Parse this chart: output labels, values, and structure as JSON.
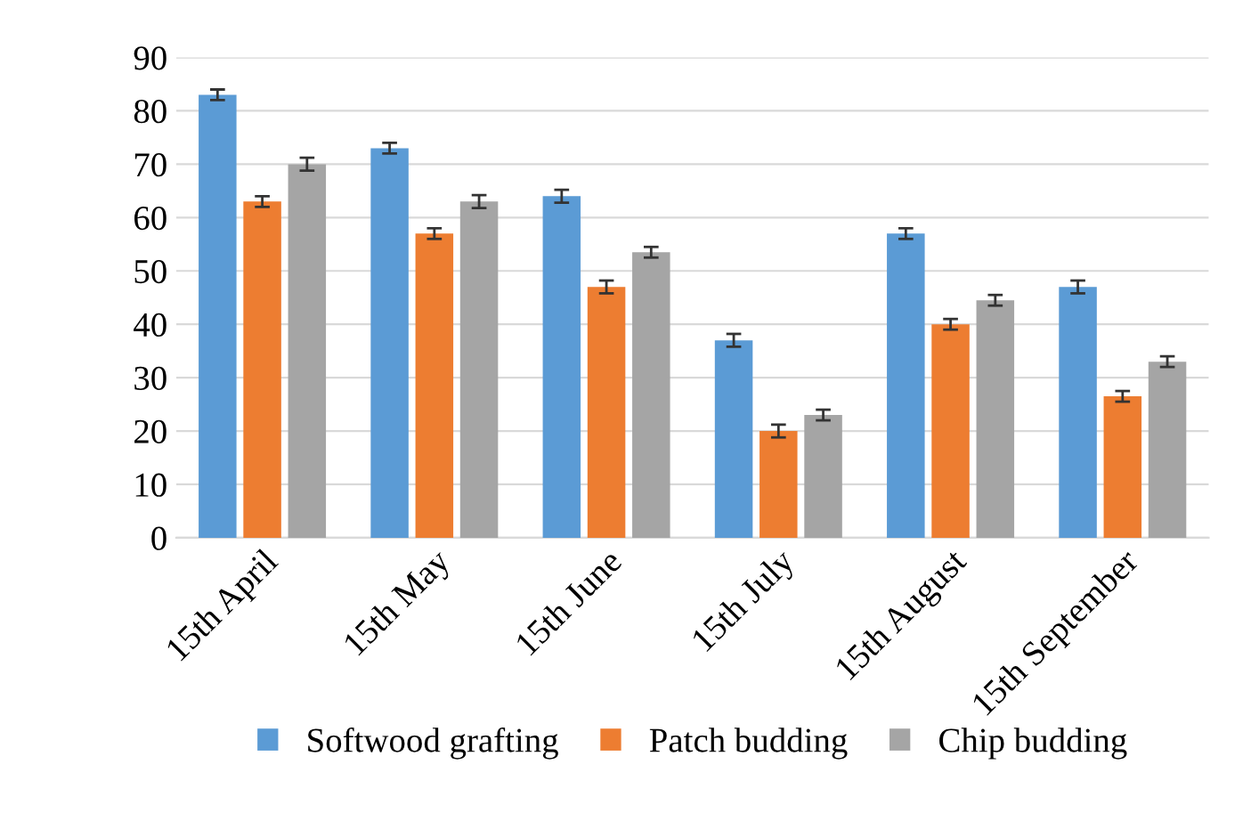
{
  "chart_data": {
    "type": "bar",
    "categories": [
      "15th April",
      "15th May",
      "15th June",
      "15th July",
      "15th August",
      "15th September"
    ],
    "series": [
      {
        "name": "Softwood grafting",
        "color": "#5b9bd5",
        "values": [
          83,
          73,
          64,
          37,
          57,
          47
        ],
        "errors": [
          1,
          1,
          1.2,
          1.2,
          1,
          1.2
        ]
      },
      {
        "name": "Patch budding",
        "color": "#ed7d31",
        "values": [
          63,
          57,
          47,
          20,
          40,
          26.5
        ],
        "errors": [
          1,
          1,
          1.2,
          1.2,
          1,
          1
        ]
      },
      {
        "name": "Chip budding",
        "color": "#a5a5a5",
        "values": [
          70,
          63,
          53.5,
          23,
          44.5,
          33
        ],
        "errors": [
          1.2,
          1.2,
          1,
          1,
          1,
          1
        ]
      }
    ],
    "ylim": [
      0,
      90
    ],
    "yticks": [
      0,
      10,
      20,
      30,
      40,
      50,
      60,
      70,
      80,
      90
    ],
    "grid": "y",
    "legend": "bottom"
  }
}
